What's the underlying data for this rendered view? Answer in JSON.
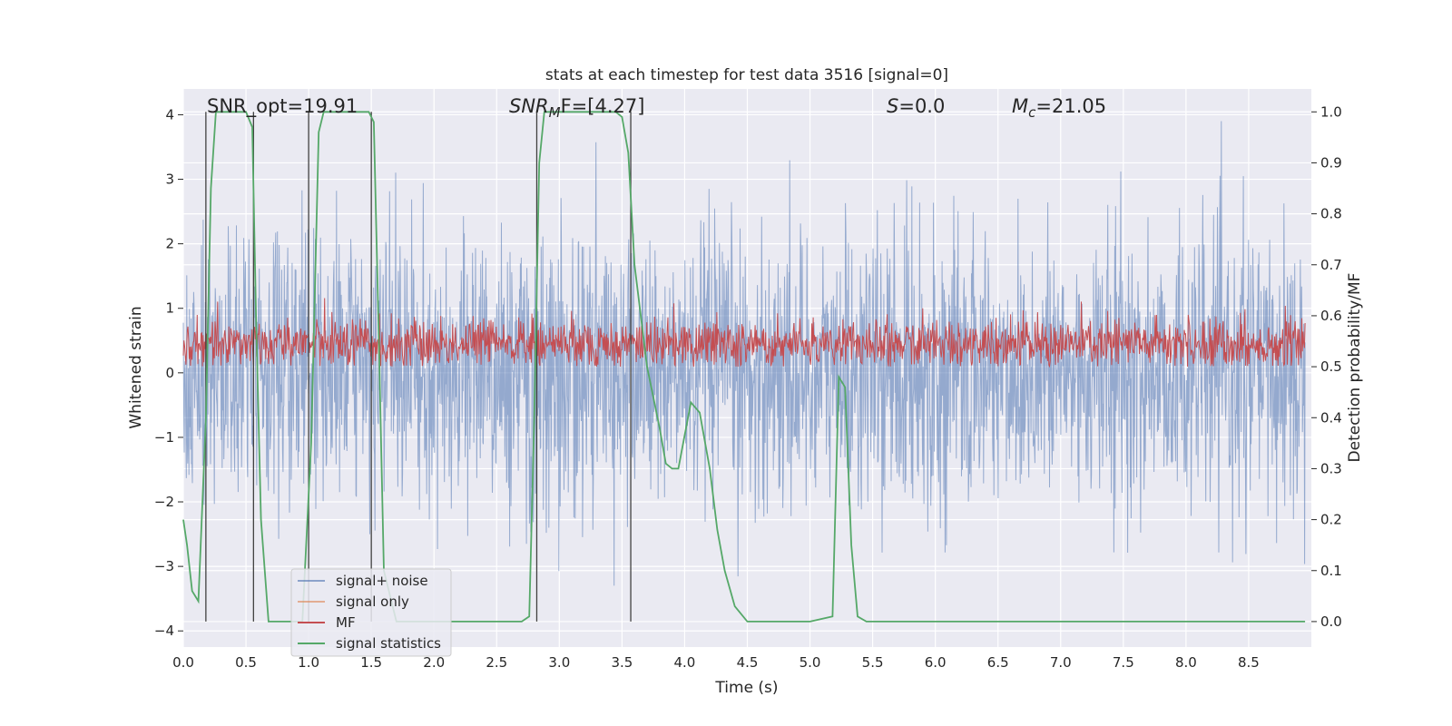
{
  "chart_data": {
    "type": "line",
    "title": "stats at each timestep for test data 3516 [signal=0]",
    "xlabel": "Time (s)",
    "ylabel_left": "Whitened strain",
    "ylabel_right": "Detection probability/MF",
    "xlim": [
      0.0,
      9.0
    ],
    "ylim_left": [
      -4.25,
      4.4
    ],
    "ylim_right": [
      -0.05,
      1.045
    ],
    "x_ticks": [
      "0.0",
      "0.5",
      "1.0",
      "1.5",
      "2.0",
      "2.5",
      "3.0",
      "3.5",
      "4.0",
      "4.5",
      "5.0",
      "5.5",
      "6.0",
      "6.5",
      "7.0",
      "7.5",
      "8.0",
      "8.5"
    ],
    "x_tick_values": [
      0.0,
      0.5,
      1.0,
      1.5,
      2.0,
      2.5,
      3.0,
      3.5,
      4.0,
      4.5,
      5.0,
      5.5,
      6.0,
      6.5,
      7.0,
      7.5,
      8.0,
      8.5
    ],
    "y_left_ticks": [
      "−4",
      "−3",
      "−2",
      "−1",
      "0",
      "1",
      "2",
      "3",
      "4"
    ],
    "y_left_tick_values": [
      -4,
      -3,
      -2,
      -1,
      0,
      1,
      2,
      3,
      4
    ],
    "y_right_ticks": [
      "0.0",
      "0.1",
      "0.2",
      "0.3",
      "0.4",
      "0.5",
      "0.6",
      "0.7",
      "0.8",
      "0.9",
      "1.0"
    ],
    "y_right_tick_values": [
      0.0,
      0.1,
      0.2,
      0.3,
      0.4,
      0.5,
      0.6,
      0.7,
      0.8,
      0.9,
      1.0
    ],
    "grid": true,
    "legend_position": "lower-left",
    "annotations": {
      "snr_opt": "SNR_opt=19.91",
      "snr_mf_main": "SNR",
      "snr_mf_sub": "M",
      "snr_mf_rest": "F=[4.27]",
      "s_main": "S",
      "s_rest": "=0.0",
      "mc_main": "M",
      "mc_sub": "c",
      "mc_rest": "=21.05"
    },
    "series": [
      {
        "name": "signal+ noise",
        "axis": "left",
        "color": "#4c72b0",
        "note": "noise-like strain, amplitude mostly within ±2, peaks near ±3.8"
      },
      {
        "name": "signal only",
        "axis": "left",
        "color": "#dd8452",
        "note": "zero signal (not visible)"
      },
      {
        "name": "MF",
        "axis": "right",
        "color": "#c44e52",
        "note": "noisy band between about 0.5 and 0.6"
      },
      {
        "name": "signal statistics",
        "axis": "right",
        "color": "#55a868",
        "x": [
          0.0,
          0.03,
          0.07,
          0.12,
          0.18,
          0.22,
          0.26,
          0.3,
          0.4,
          0.5,
          0.55,
          0.58,
          0.62,
          0.68,
          0.75,
          0.85,
          0.95,
          1.02,
          1.08,
          1.12,
          1.2,
          1.3,
          1.4,
          1.48,
          1.52,
          1.56,
          1.6,
          1.7,
          2.0,
          2.5,
          2.7,
          2.76,
          2.8,
          2.84,
          2.88,
          2.95,
          3.1,
          3.3,
          3.45,
          3.5,
          3.55,
          3.6,
          3.7,
          3.8,
          3.85,
          3.9,
          3.95,
          4.05,
          4.12,
          4.2,
          4.26,
          4.32,
          4.4,
          4.5,
          5.0,
          5.18,
          5.23,
          5.28,
          5.33,
          5.38,
          5.45,
          5.6,
          5.8,
          6.0,
          7.0,
          8.0,
          8.5,
          8.95
        ],
        "y": [
          0.2,
          0.15,
          0.06,
          0.04,
          0.4,
          0.85,
          1.0,
          1.0,
          1.0,
          1.0,
          0.97,
          0.6,
          0.2,
          0.0,
          0.0,
          0.0,
          0.0,
          0.35,
          0.96,
          1.0,
          1.0,
          1.0,
          1.0,
          1.0,
          0.98,
          0.55,
          0.1,
          0.0,
          0.0,
          0.0,
          0.0,
          0.01,
          0.4,
          0.9,
          1.0,
          1.0,
          1.0,
          1.0,
          1.0,
          0.99,
          0.92,
          0.7,
          0.5,
          0.38,
          0.31,
          0.3,
          0.3,
          0.43,
          0.41,
          0.3,
          0.18,
          0.1,
          0.03,
          0.0,
          0.0,
          0.01,
          0.48,
          0.46,
          0.15,
          0.01,
          0.0,
          0.0,
          0.0,
          0.0,
          0.0,
          0.0,
          0.0,
          0.0
        ]
      }
    ],
    "vertical_markers_x": [
      0.18,
      0.56,
      1.0,
      1.5,
      2.82,
      3.57
    ]
  },
  "legend": {
    "items": [
      "signal+ noise",
      "signal only",
      "MF",
      "signal statistics"
    ]
  }
}
